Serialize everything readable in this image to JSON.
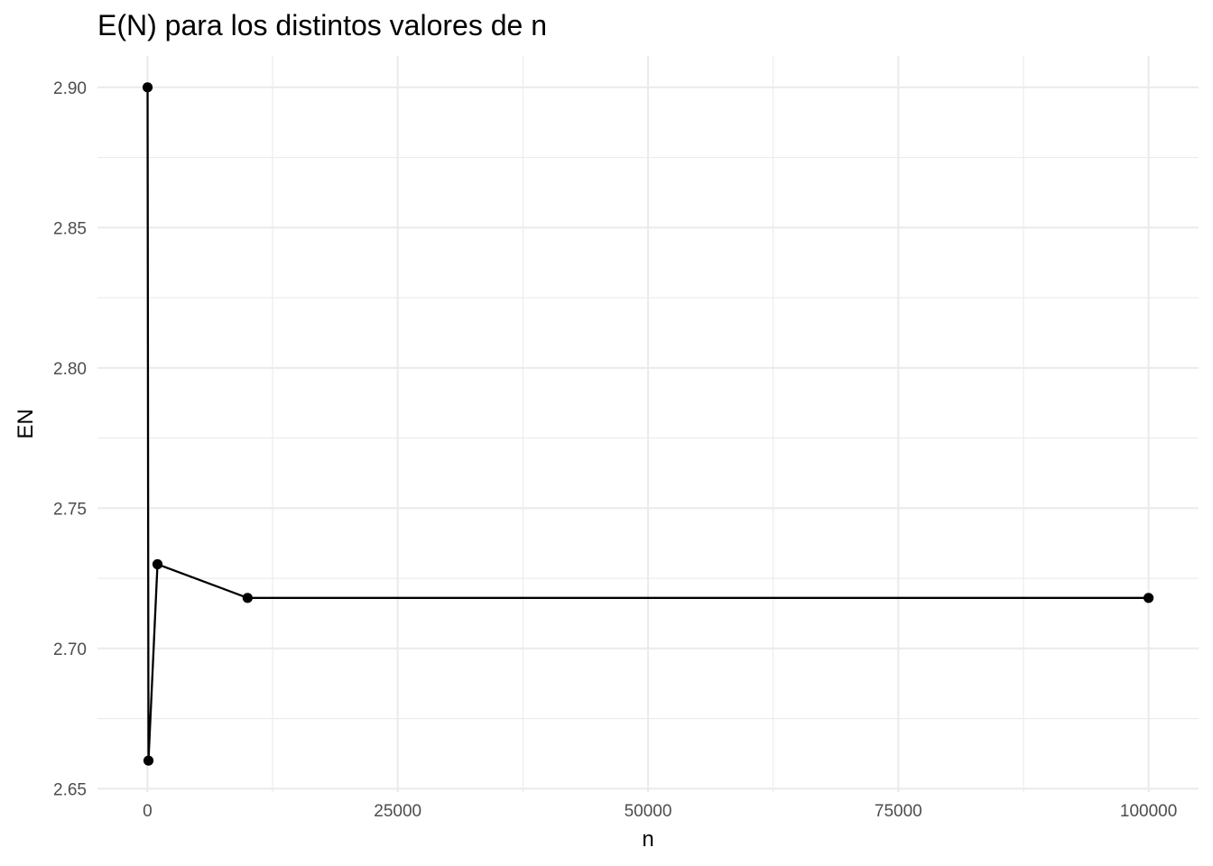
{
  "chart_data": {
    "type": "line",
    "title": "E(N) para los distintos valores de n",
    "xlabel": "n",
    "ylabel": "EN",
    "xlim": [
      -4995,
      104995
    ],
    "ylim": [
      2.6488,
      2.9112
    ],
    "x_major_ticks": [
      0,
      25000,
      50000,
      75000,
      100000
    ],
    "x_tick_labels": [
      "0",
      "25000",
      "50000",
      "75000",
      "100000"
    ],
    "x_minor_ticks": [
      12500,
      37500,
      62500,
      87500
    ],
    "y_major_ticks": [
      2.65,
      2.7,
      2.75,
      2.8,
      2.85,
      2.9
    ],
    "y_tick_labels": [
      "2.65",
      "2.70",
      "2.75",
      "2.80",
      "2.85",
      "2.90"
    ],
    "y_minor_ticks": [
      2.675,
      2.725,
      2.775,
      2.825,
      2.875
    ],
    "grid": true,
    "legend": "none",
    "series": [
      {
        "x": [
          10,
          100,
          1000,
          10000,
          100000
        ],
        "y": [
          2.9,
          2.66,
          2.73,
          2.718,
          2.718
        ],
        "color": "#000000",
        "markers": true
      }
    ]
  }
}
